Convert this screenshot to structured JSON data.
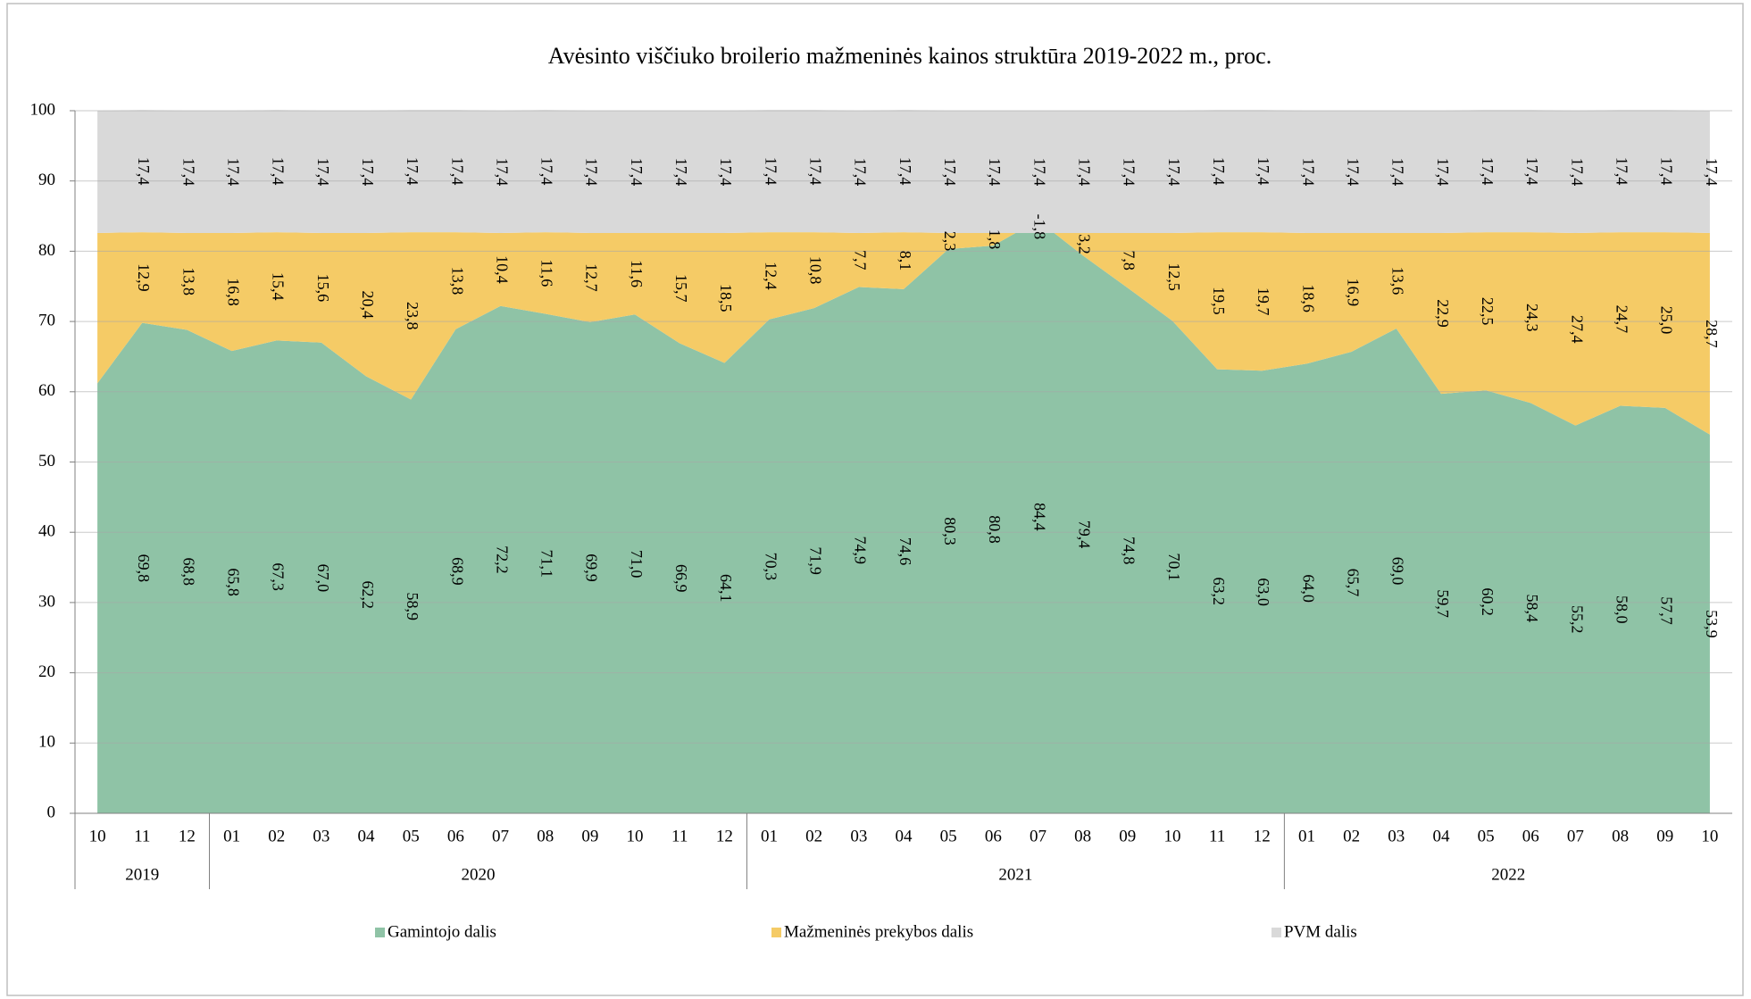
{
  "chart_data": {
    "type": "stacked_area",
    "title": "Avėsinto viščiuko broilerio mažmeninės kainos struktūra 2019-2022 m., proc.",
    "categories": [
      [
        "2019",
        "10"
      ],
      [
        "2019",
        "11"
      ],
      [
        "2019",
        "12"
      ],
      [
        "2020",
        "01"
      ],
      [
        "2020",
        "02"
      ],
      [
        "2020",
        "03"
      ],
      [
        "2020",
        "04"
      ],
      [
        "2020",
        "05"
      ],
      [
        "2020",
        "06"
      ],
      [
        "2020",
        "07"
      ],
      [
        "2020",
        "08"
      ],
      [
        "2020",
        "09"
      ],
      [
        "2020",
        "10"
      ],
      [
        "2020",
        "11"
      ],
      [
        "2020",
        "12"
      ],
      [
        "2021",
        "01"
      ],
      [
        "2021",
        "02"
      ],
      [
        "2021",
        "03"
      ],
      [
        "2021",
        "04"
      ],
      [
        "2021",
        "05"
      ],
      [
        "2021",
        "06"
      ],
      [
        "2021",
        "07"
      ],
      [
        "2021",
        "08"
      ],
      [
        "2021",
        "09"
      ],
      [
        "2021",
        "10"
      ],
      [
        "2021",
        "11"
      ],
      [
        "2021",
        "12"
      ],
      [
        "2022",
        "01"
      ],
      [
        "2022",
        "02"
      ],
      [
        "2022",
        "03"
      ],
      [
        "2022",
        "04"
      ],
      [
        "2022",
        "05"
      ],
      [
        "2022",
        "06"
      ],
      [
        "2022",
        "07"
      ],
      [
        "2022",
        "08"
      ],
      [
        "2022",
        "09"
      ],
      [
        "2022",
        "10"
      ]
    ],
    "series": [
      {
        "name": "Gamintojo dalis",
        "color": "#8fc3a6",
        "values": [
          61.2,
          69.8,
          68.8,
          65.8,
          67.3,
          67.0,
          62.2,
          58.9,
          68.9,
          72.2,
          71.1,
          69.9,
          71.0,
          66.9,
          64.1,
          70.3,
          71.9,
          74.9,
          74.6,
          80.3,
          80.8,
          84.4,
          79.4,
          74.8,
          70.1,
          63.2,
          63.0,
          64.0,
          65.7,
          69.0,
          59.7,
          60.2,
          58.4,
          55.2,
          58.0,
          57.7,
          53.9
        ],
        "value_labels": [
          null,
          "69,8",
          "68,8",
          "65,8",
          "67,3",
          "67,0",
          "62,2",
          "58,9",
          "68,9",
          "72,2",
          "71,1",
          "69,9",
          "71,0",
          "66,9",
          "64,1",
          "70,3",
          "71,9",
          "74,9",
          "74,6",
          "80,3",
          "80,8",
          "84,4",
          "79,4",
          "74,8",
          "70,1",
          "63,2",
          "63,0",
          "64,0",
          "65,7",
          "69,0",
          "59,7",
          "60,2",
          "58,4",
          "55,2",
          "58,0",
          "57,7",
          "53,9"
        ]
      },
      {
        "name": "Mažmeninės prekybos dalis",
        "color": "#f5cb66",
        "values": [
          21.4,
          12.9,
          13.8,
          16.8,
          15.4,
          15.6,
          20.4,
          23.8,
          13.8,
          10.4,
          11.6,
          12.7,
          11.6,
          15.7,
          18.5,
          12.4,
          10.8,
          7.7,
          8.1,
          2.3,
          1.8,
          -1.8,
          3.2,
          7.8,
          12.5,
          19.5,
          19.7,
          18.6,
          16.9,
          13.6,
          22.9,
          22.5,
          24.3,
          27.4,
          24.7,
          25.0,
          28.7
        ],
        "value_labels": [
          null,
          "12,9",
          "13,8",
          "16,8",
          "15,4",
          "15,6",
          "20,4",
          "23,8",
          "13,8",
          "10,4",
          "11,6",
          "12,7",
          "11,6",
          "15,7",
          "18,5",
          "12,4",
          "10,8",
          "7,7",
          "8,1",
          "2,3",
          "1,8",
          "-1,8",
          "3,2",
          "7,8",
          "12,5",
          "19,5",
          "19,7",
          "18,6",
          "16,9",
          "13,6",
          "22,9",
          "22,5",
          "24,3",
          "27,4",
          "24,7",
          "25,0",
          "28,7"
        ]
      },
      {
        "name": "PVM dalis",
        "color": "#d9d9d9",
        "values": [
          17.4,
          17.4,
          17.4,
          17.4,
          17.4,
          17.4,
          17.4,
          17.4,
          17.4,
          17.4,
          17.4,
          17.4,
          17.4,
          17.4,
          17.4,
          17.4,
          17.4,
          17.4,
          17.4,
          17.4,
          17.4,
          17.4,
          17.4,
          17.4,
          17.4,
          17.4,
          17.4,
          17.4,
          17.4,
          17.4,
          17.4,
          17.4,
          17.4,
          17.4,
          17.4,
          17.4,
          17.4
        ],
        "value_labels": [
          null,
          "17,4",
          "17,4",
          "17,4",
          "17,4",
          "17,4",
          "17,4",
          "17,4",
          "17,4",
          "17,4",
          "17,4",
          "17,4",
          "17,4",
          "17,4",
          "17,4",
          "17,4",
          "17,4",
          "17,4",
          "17,4",
          "17,4",
          "17,4",
          "17,4",
          "17,4",
          "17,4",
          "17,4",
          "17,4",
          "17,4",
          "17,4",
          "17,4",
          "17,4",
          "17,4",
          "17,4",
          "17,4",
          "17,4",
          "17,4",
          "17,4",
          "17,4"
        ]
      }
    ],
    "ylim": [
      0,
      100
    ],
    "yticks": [
      0,
      10,
      20,
      30,
      40,
      50,
      60,
      70,
      80,
      90,
      100
    ],
    "grid": true,
    "legend": "bottom"
  }
}
